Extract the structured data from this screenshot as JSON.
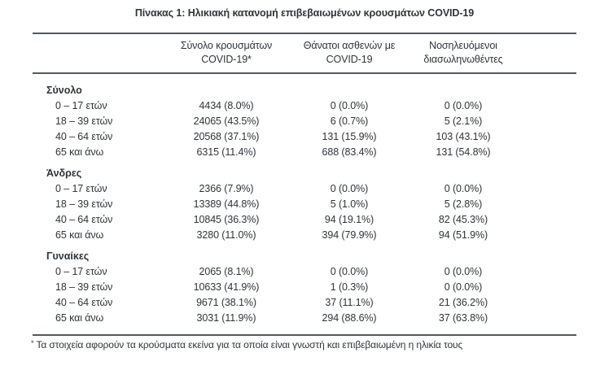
{
  "title": "Πίνακας 1: Ηλικιακή κατανομή επιβεβαιωμένων κρουσμάτων COVID-19",
  "colors": {
    "text": "#2f3338",
    "rule": "#54575b",
    "background": "#ffffff"
  },
  "table": {
    "columns": [
      {
        "lines": [
          "Σύνολο κρουσμάτων",
          "COVID-19*"
        ]
      },
      {
        "lines": [
          "Θάνατοι ασθενών με",
          "COVID-19"
        ]
      },
      {
        "lines": [
          "Νοσηλευόμενοι",
          "διασωληνωθέντες"
        ]
      }
    ],
    "sections": [
      {
        "label": "Σύνολο",
        "rows": [
          {
            "label": "0 – 17 ετών",
            "cases": "4434 (8.0%)",
            "deaths": "0 (0.0%)",
            "intubated": "0 (0.0%)"
          },
          {
            "label": "18 – 39 ετών",
            "cases": "24065 (43.5%)",
            "deaths": "6 (0.7%)",
            "intubated": "5 (2.1%)"
          },
          {
            "label": "40 – 64 ετών",
            "cases": "20568 (37.1%)",
            "deaths": "131 (15.9%)",
            "intubated": "103 (43.1%)"
          },
          {
            "label": "65 και άνω",
            "cases": "6315 (11.4%)",
            "deaths": "688 (83.4%)",
            "intubated": "131 (54.8%)"
          }
        ]
      },
      {
        "label": "Άνδρες",
        "rows": [
          {
            "label": "0 – 17 ετών",
            "cases": "2366 (7.9%)",
            "deaths": "0 (0.0%)",
            "intubated": "0 (0.0%)"
          },
          {
            "label": "18 – 39 ετών",
            "cases": "13389 (44.8%)",
            "deaths": "5 (1.0%)",
            "intubated": "5 (2.8%)"
          },
          {
            "label": "40 – 64 ετών",
            "cases": "10845 (36.3%)",
            "deaths": "94 (19.1%)",
            "intubated": "82 (45.3%)"
          },
          {
            "label": "65 και άνω",
            "cases": "3280 (11.0%)",
            "deaths": "394 (79.9%)",
            "intubated": "94 (51.9%)"
          }
        ]
      },
      {
        "label": "Γυναίκες",
        "rows": [
          {
            "label": "0 – 17 ετών",
            "cases": "2065 (8.1%)",
            "deaths": "0 (0.0%)",
            "intubated": "0 (0.0%)"
          },
          {
            "label": "18 – 39 ετών",
            "cases": "10633 (41.9%)",
            "deaths": "1 (0.3%)",
            "intubated": "0 (0.0%)"
          },
          {
            "label": "40 – 64 ετών",
            "cases": "9671 (38.1%)",
            "deaths": "37 (11.1%)",
            "intubated": "21 (36.2%)"
          },
          {
            "label": "65 και άνω",
            "cases": "3031 (11.9%)",
            "deaths": "294 (88.6%)",
            "intubated": "37 (63.8%)"
          }
        ]
      }
    ],
    "footnote": {
      "marker": "*",
      "text": "Τα στοιχεία αφορούν τα κρούσματα εκείνα για τα οποία είναι γνωστή και επιβεβαιωμένη η ηλικία τους"
    }
  }
}
